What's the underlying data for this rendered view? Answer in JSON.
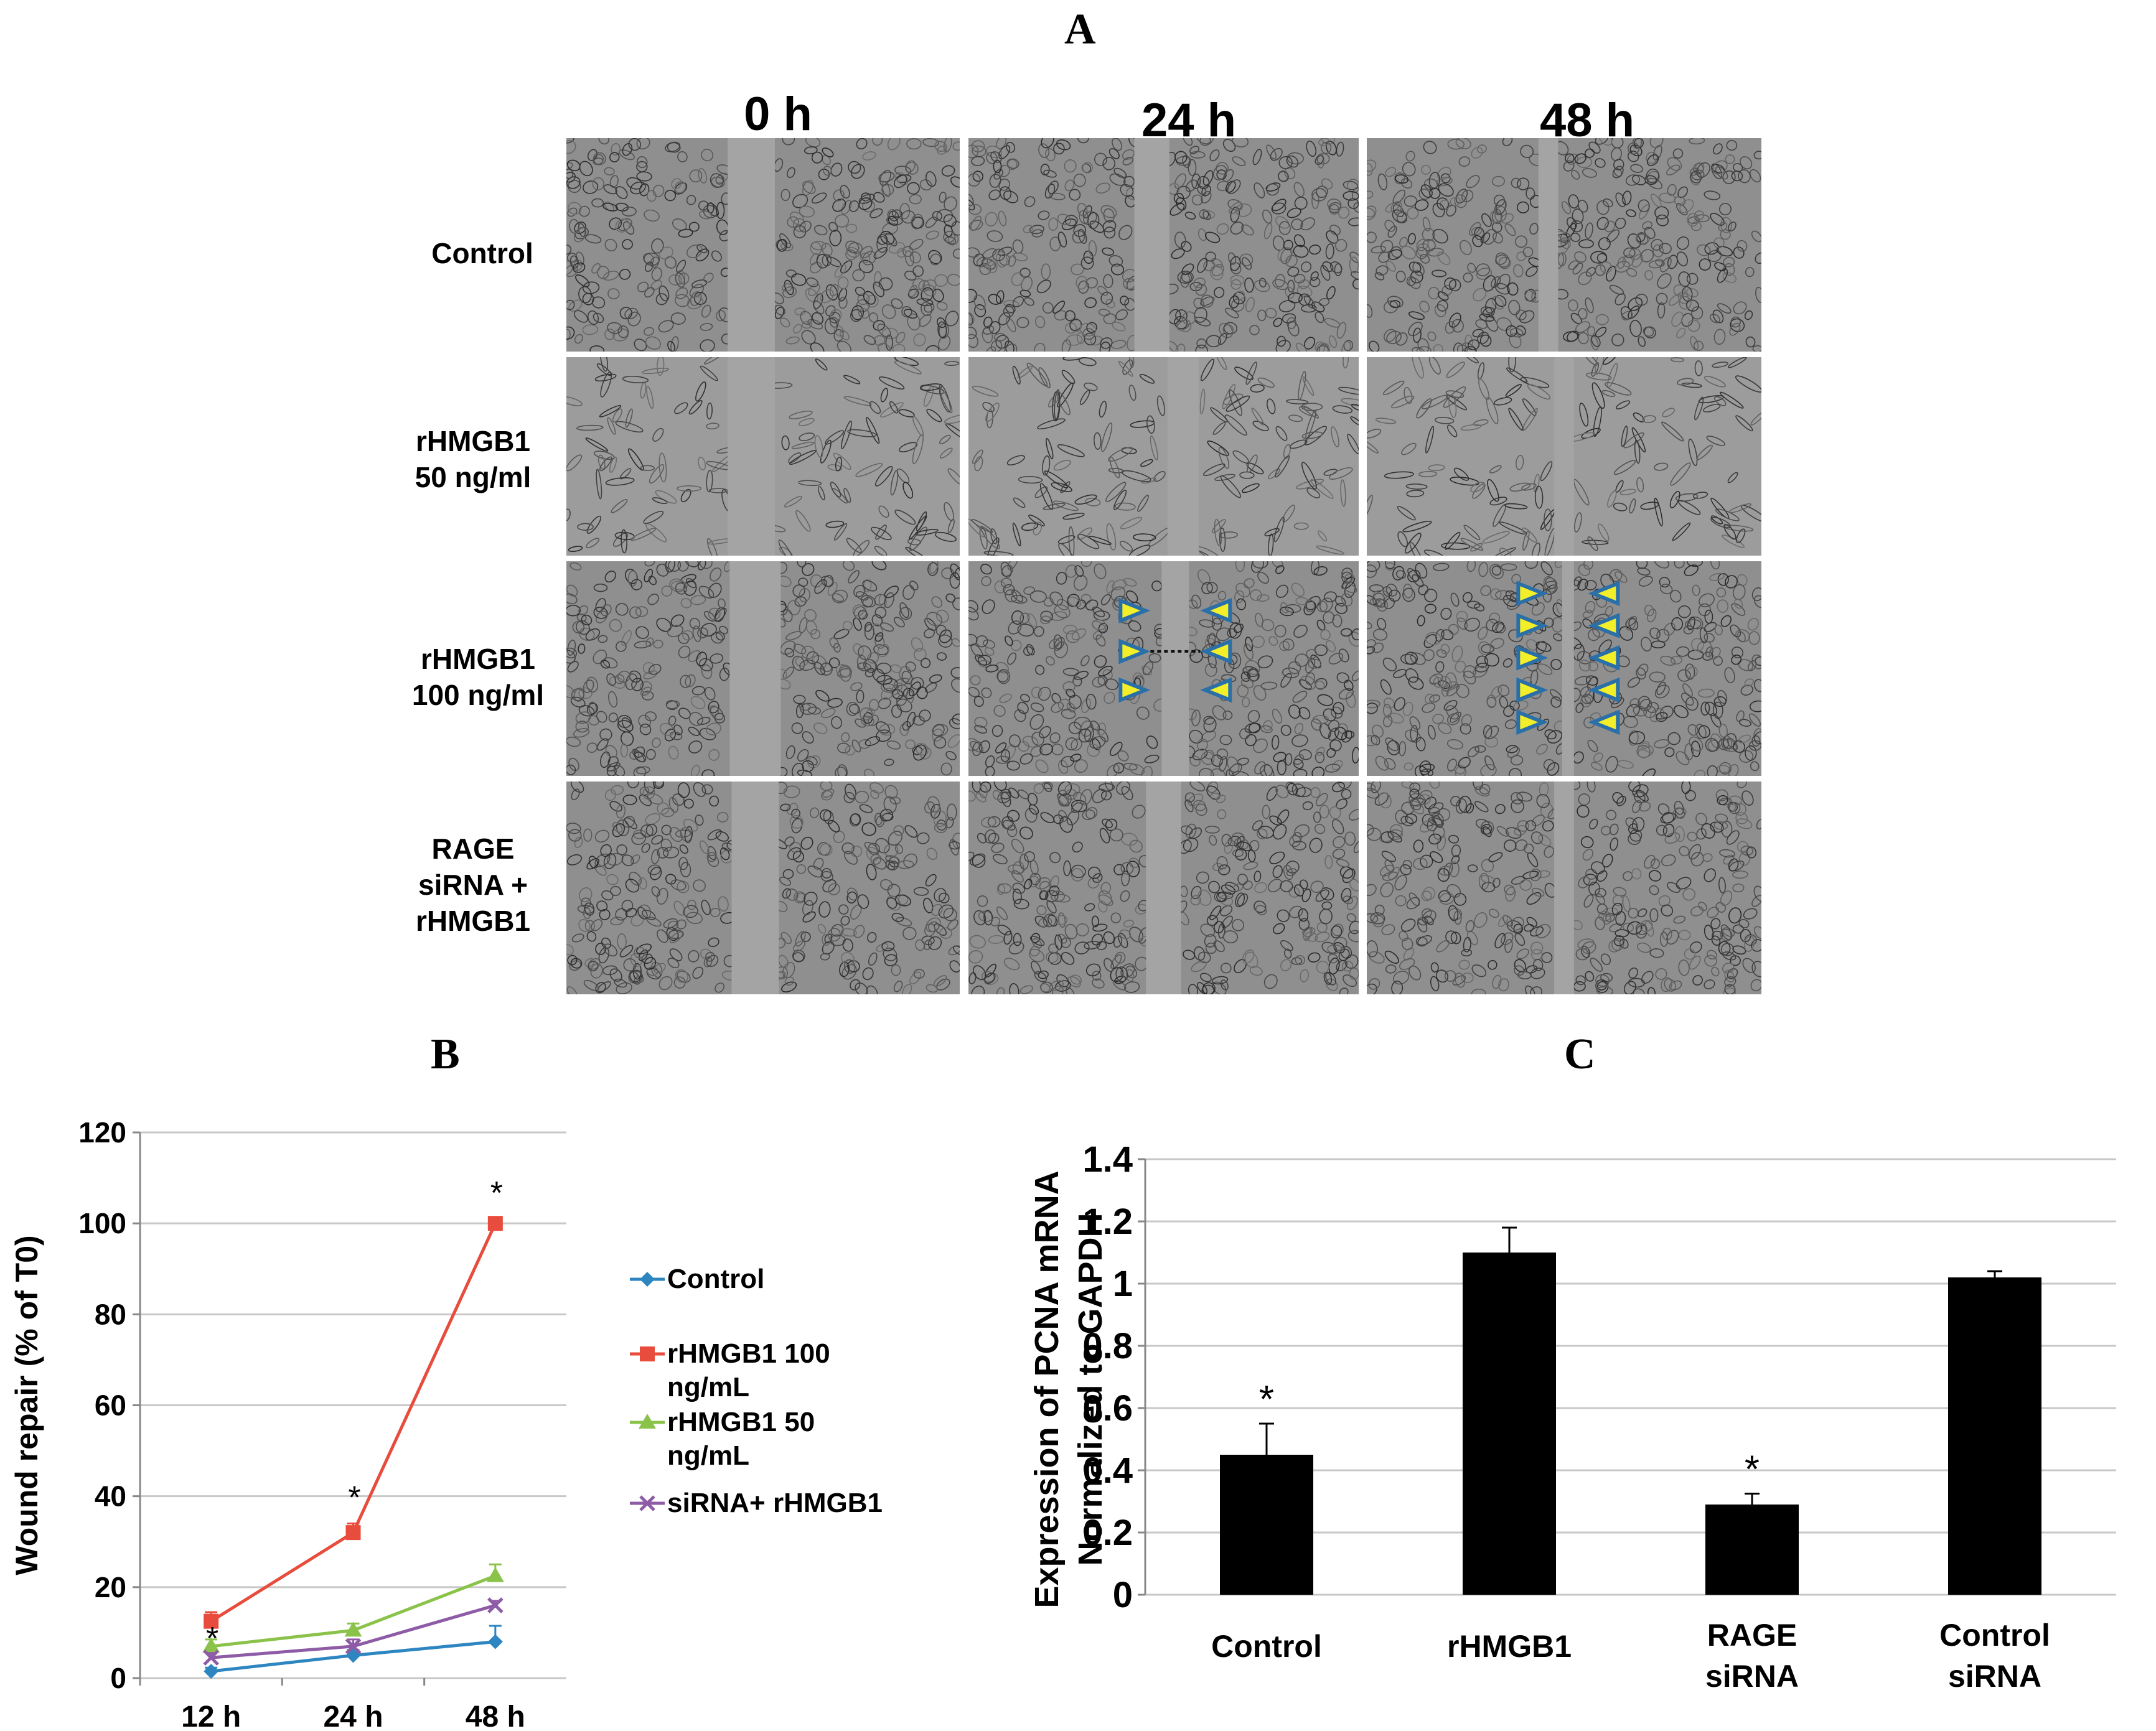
{
  "panels": {
    "a": "A",
    "b": "B",
    "c": "C"
  },
  "micrograph": {
    "columns": [
      "0 h",
      "24 h",
      "48 h"
    ],
    "rows": [
      [
        "Control"
      ],
      [
        "rHMGB1",
        "50 ng/ml"
      ],
      [
        "rHMGB1",
        "100 ng/ml"
      ],
      [
        "RAGE",
        "siRNA +",
        "rHMGB1"
      ]
    ],
    "colors": {
      "cells": "#8a8a8a",
      "arrow_fill": "#f2ee2a",
      "arrow_edge": "#2a6fa8"
    }
  },
  "chart_data": [
    {
      "type": "line",
      "categories": [
        "12 h",
        "24 h",
        "48 h"
      ],
      "ylabel": "Wound repair  (% of T0)",
      "ylim": [
        0,
        120
      ],
      "yticks": [
        0,
        20,
        40,
        60,
        80,
        100,
        120
      ],
      "grid": true,
      "legend": "right",
      "series": [
        {
          "name": "Control",
          "values": [
            1.5,
            5,
            8
          ],
          "errors": [
            0.8,
            1.2,
            3.5
          ],
          "color": "#2e86c1",
          "marker": "diamond"
        },
        {
          "name": "rHMGB1 100 ng/mL",
          "values": [
            12.5,
            32,
            100
          ],
          "errors": [
            2,
            2,
            0.5
          ],
          "color": "#e74c3c",
          "marker": "square"
        },
        {
          "name": "rHMGB1 50 ng/mL",
          "values": [
            7,
            10.5,
            22.5
          ],
          "errors": [
            1.5,
            1.5,
            2.5
          ],
          "color": "#8bc34a",
          "marker": "triangle"
        },
        {
          "name": "siRNA+ rHMGB1",
          "values": [
            4.5,
            7,
            16
          ],
          "errors": [
            1,
            1.5,
            1
          ],
          "color": "#8e5ba6",
          "marker": "x"
        }
      ],
      "annotations": [
        {
          "text": "*",
          "x": "12 h",
          "y": 3
        },
        {
          "text": "*",
          "x": "24 h",
          "y": 34
        },
        {
          "text": "*",
          "x": "48 h",
          "y": 101
        }
      ]
    },
    {
      "type": "bar",
      "categories": [
        [
          "Control"
        ],
        [
          "rHMGB1"
        ],
        [
          "RAGE",
          "siRNA"
        ],
        [
          "Control",
          "siRNA"
        ]
      ],
      "values": [
        0.45,
        1.1,
        0.29,
        1.02
      ],
      "errors": [
        0.1,
        0.08,
        0.035,
        0.02
      ],
      "ylabel": [
        "Expression of PCNA mRNA",
        "Normalized to GAPDH"
      ],
      "ylim": [
        0,
        1.4
      ],
      "yticks": [
        "0",
        "0.2",
        "0.4",
        "0.6",
        "0.8",
        "1",
        "1.2",
        "1.4"
      ],
      "grid": true,
      "bar_color": "#000000",
      "significance": [
        "*",
        "",
        "*",
        ""
      ]
    }
  ]
}
